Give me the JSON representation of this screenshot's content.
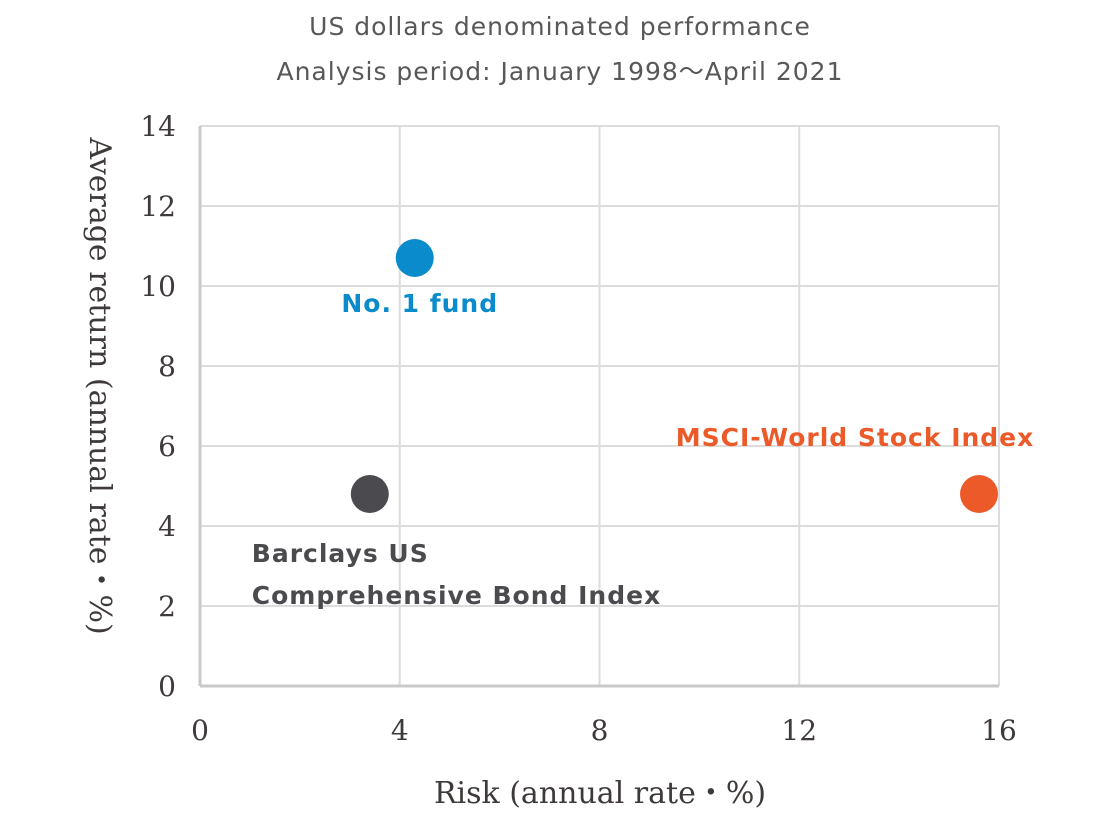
{
  "chart_data": {
    "type": "scatter",
    "title": "US dollars denominated performance",
    "subtitle": "Analysis period: January 1998〜April 2021",
    "xlabel": "Risk (annual rate・%)",
    "ylabel": "Average return (annual rate・%)",
    "xlim": [
      0,
      16
    ],
    "ylim": [
      0,
      14
    ],
    "xticks": [
      0,
      4,
      8,
      12,
      16
    ],
    "yticks": [
      0,
      2,
      4,
      6,
      8,
      10,
      12,
      14
    ],
    "grid": true,
    "points": [
      {
        "label_lines": [
          "No. 1 fund"
        ],
        "x": 4.3,
        "y": 10.7,
        "color": "#0a8bcb"
      },
      {
        "label_lines": [
          "MSCI-World Stock Index"
        ],
        "x": 15.6,
        "y": 4.8,
        "color": "#eb5a28"
      },
      {
        "label_lines": [
          "Barclays US",
          "Comprehensive Bond Index"
        ],
        "x": 3.4,
        "y": 4.8,
        "color": "#4b4b4f"
      }
    ]
  }
}
